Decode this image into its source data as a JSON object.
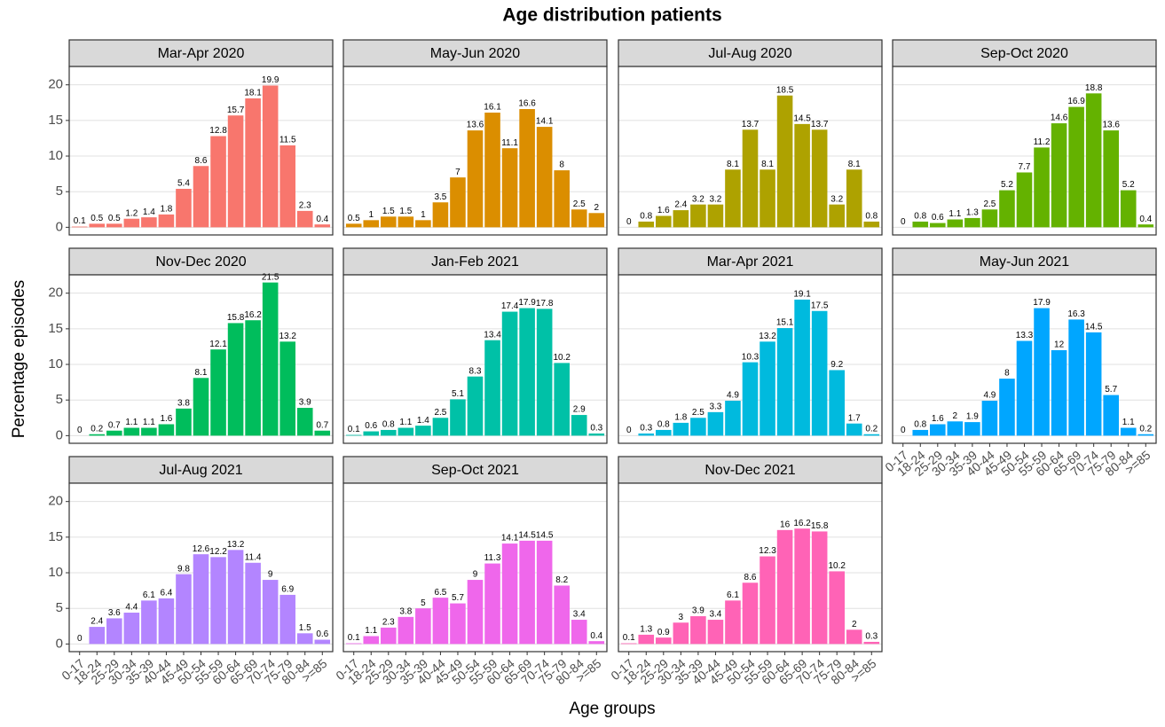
{
  "chart_data": {
    "type": "bar",
    "title": "Age distribution patients",
    "x_label": "Age groups",
    "y_label": "Percentage episodes",
    "categories": [
      "0-17",
      "18-24",
      "25-29",
      "30-34",
      "35-39",
      "40-44",
      "45-49",
      "50-54",
      "55-59",
      "60-64",
      "65-69",
      "70-74",
      "75-79",
      "80-84",
      ">=85"
    ],
    "ylim": [
      -1.075,
      22.575
    ],
    "yticks": [
      0,
      5,
      10,
      15,
      20
    ],
    "grid": true,
    "series": [
      {
        "name": "Mar-Apr 2020",
        "color": "#F8766D",
        "values": [
          0.1,
          0.5,
          0.5,
          1.2,
          1.4,
          1.8,
          5.4,
          8.6,
          12.8,
          15.7,
          18.1,
          19.9,
          11.5,
          2.3,
          0.4
        ]
      },
      {
        "name": "May-Jun 2020",
        "color": "#DB8E00",
        "values": [
          0.5,
          1,
          1.5,
          1.5,
          1,
          3.5,
          7,
          13.6,
          16.1,
          11.1,
          16.6,
          14.1,
          8,
          2.5,
          2
        ]
      },
      {
        "name": "Jul-Aug 2020",
        "color": "#AEA200",
        "values": [
          0,
          0.8,
          1.6,
          2.4,
          3.2,
          3.2,
          8.1,
          13.7,
          8.1,
          18.5,
          14.5,
          13.7,
          3.2,
          8.1,
          0.8
        ]
      },
      {
        "name": "Sep-Oct 2020",
        "color": "#64B200",
        "values": [
          0,
          0.8,
          0.6,
          1.1,
          1.3,
          2.5,
          5.2,
          7.7,
          11.2,
          14.6,
          16.9,
          18.8,
          13.6,
          5.2,
          0.4
        ]
      },
      {
        "name": "Nov-Dec 2020",
        "color": "#00BD5C",
        "values": [
          0,
          0.2,
          0.7,
          1.1,
          1.1,
          1.6,
          3.8,
          8.1,
          12.1,
          15.8,
          16.2,
          21.5,
          13.2,
          3.9,
          0.7
        ]
      },
      {
        "name": "Jan-Feb 2021",
        "color": "#00C1A7",
        "values": [
          0.1,
          0.6,
          0.8,
          1.1,
          1.4,
          2.5,
          5.1,
          8.3,
          13.4,
          17.4,
          17.9,
          17.8,
          10.2,
          2.9,
          0.3
        ]
      },
      {
        "name": "Mar-Apr 2021",
        "color": "#00BADE",
        "values": [
          0,
          0.3,
          0.8,
          1.8,
          2.5,
          3.3,
          4.9,
          10.3,
          13.2,
          15.1,
          19.1,
          17.5,
          9.2,
          1.7,
          0.2
        ]
      },
      {
        "name": "May-Jun 2021",
        "color": "#00A6FF",
        "values": [
          0,
          0.8,
          1.6,
          2,
          1.9,
          4.9,
          8,
          13.3,
          17.9,
          12,
          16.3,
          14.5,
          5.7,
          1.1,
          0.2
        ]
      },
      {
        "name": "Jul-Aug 2021",
        "color": "#B385FF",
        "values": [
          0,
          2.4,
          3.6,
          4.4,
          6.1,
          6.4,
          9.8,
          12.6,
          12.2,
          13.2,
          11.4,
          9,
          6.9,
          1.5,
          0.6
        ]
      },
      {
        "name": "Sep-Oct 2021",
        "color": "#EF67EB",
        "values": [
          0.1,
          1.1,
          2.3,
          3.8,
          5,
          6.5,
          5.7,
          9,
          11.3,
          14.1,
          14.5,
          14.5,
          8.2,
          3.4,
          0.4
        ]
      },
      {
        "name": "Nov-Dec 2021",
        "color": "#FF63B6",
        "values": [
          0.1,
          1.3,
          0.9,
          3,
          3.9,
          3.4,
          6.1,
          8.6,
          12.3,
          16,
          16.2,
          15.8,
          10.2,
          2,
          0.3
        ]
      }
    ]
  }
}
